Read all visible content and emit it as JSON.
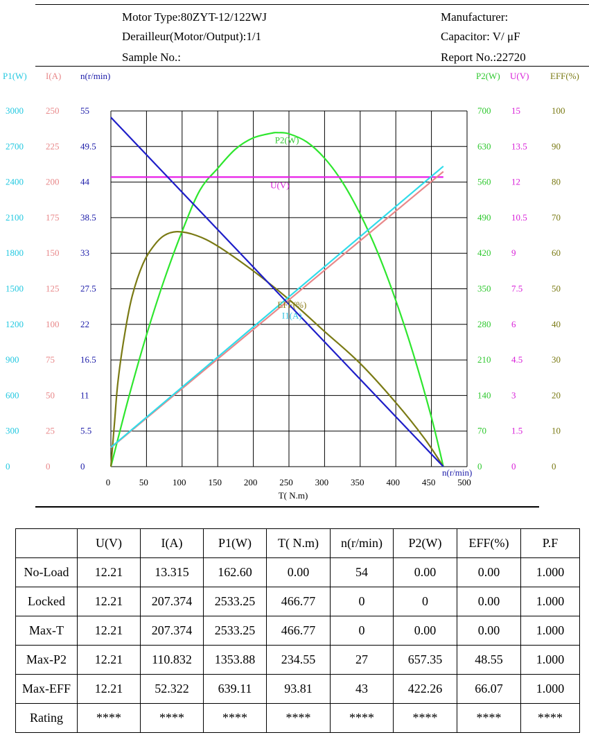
{
  "header": {
    "motor_type": "Motor Type:80ZYT-12/122WJ",
    "derailleur": "Derailleur(Motor/Output):1/1",
    "sample_no": "Sample No.:",
    "manufacturer": "Manufacturer:",
    "capacitor": "Capacitor:   V/ μF",
    "report_no": "Report No.:22720"
  },
  "chart_data": {
    "type": "line",
    "xlabel": "T( N.m)",
    "x_ticks": [
      "0",
      "50",
      "100",
      "150",
      "200",
      "250",
      "300",
      "350",
      "400",
      "450",
      "500"
    ],
    "xlim": [
      0,
      500
    ],
    "x_end_label": "n(r/min)",
    "grid": true,
    "left_axes": [
      {
        "name": "P1(W)",
        "color": "#22c8e0",
        "ticks": [
          "3000",
          "2700",
          "2400",
          "2100",
          "1800",
          "1500",
          "1200",
          "900",
          "600",
          "300",
          "0"
        ]
      },
      {
        "name": "I(A)",
        "color": "#e8888a",
        "ticks": [
          "250",
          "225",
          "200",
          "175",
          "150",
          "125",
          "100",
          "75",
          "50",
          "25",
          "0"
        ]
      },
      {
        "name": "n(r/min)",
        "color": "#1a1aa8",
        "ticks": [
          "55",
          "49.5",
          "44",
          "38.5",
          "33",
          "27.5",
          "22",
          "16.5",
          "11",
          "5.5",
          "0"
        ]
      }
    ],
    "right_axes": [
      {
        "name": "P2(W)",
        "color": "#2ec82e",
        "ticks": [
          "700",
          "630",
          "560",
          "490",
          "420",
          "350",
          "280",
          "210",
          "140",
          "70",
          "0"
        ]
      },
      {
        "name": "U(V)",
        "color": "#d81ed8",
        "ticks": [
          "15",
          "13.5",
          "12",
          "10.5",
          "9",
          "7.5",
          "6",
          "4.5",
          "3",
          "1.5",
          "0"
        ]
      },
      {
        "name": "EFF(%)",
        "color": "#7a7a14",
        "ticks": [
          "100",
          "90",
          "80",
          "70",
          "60",
          "50",
          "40",
          "30",
          "20",
          "10",
          "0"
        ]
      }
    ],
    "series": [
      {
        "name": "P2(W)",
        "key": "p2",
        "color": "#2ee62e",
        "axis_max": 700,
        "x": [
          0,
          25,
          50,
          75,
          100,
          125,
          150,
          175,
          200,
          225,
          234.55,
          250,
          275,
          300,
          325,
          350,
          375,
          400,
          425,
          450,
          466.77
        ],
        "values": [
          0,
          136,
          259,
          368,
          463,
          544,
          587,
          625,
          647,
          656,
          657.35,
          655,
          639,
          607,
          560,
          497,
          420,
          327,
          220,
          97,
          0
        ]
      },
      {
        "name": "U(V)",
        "key": "u",
        "color": "#e81ee8",
        "axis_max": 15,
        "x": [
          0,
          466.77
        ],
        "values": [
          12.21,
          12.21
        ]
      },
      {
        "name": "EFF(%)",
        "key": "eff",
        "color": "#7a7a14",
        "axis_max": 100,
        "x": [
          0,
          5,
          10,
          20,
          30,
          45,
          60,
          75,
          93.81,
          120,
          150,
          200,
          250,
          300,
          350,
          400,
          440,
          466.77
        ],
        "values": [
          0,
          12,
          24,
          38,
          48,
          57,
          62,
          65,
          66.07,
          65,
          62,
          55,
          47,
          38,
          29,
          18,
          8,
          0
        ]
      },
      {
        "name": "I(A)",
        "key": "i",
        "color": "#e8888a",
        "axis_max": 250,
        "x": [
          0,
          466.77
        ],
        "values": [
          13.315,
          207.374
        ]
      },
      {
        "name": "P1(W)",
        "key": "p1",
        "color": "#30dcea",
        "axis_max": 3000,
        "x": [
          0,
          466.77
        ],
        "values": [
          162.6,
          2533.25
        ]
      },
      {
        "name": "n(r/min)",
        "key": "n",
        "color": "#1e1ec8",
        "axis_max": 55,
        "x": [
          0,
          466.77
        ],
        "values": [
          54,
          0
        ]
      }
    ],
    "annotations": [
      {
        "text": "P2(W)",
        "color": "#2ec82e",
        "x": 255,
        "y_frac": 0.917
      },
      {
        "text": "U(V)",
        "color": "#d81ed8",
        "x": 245,
        "y_frac": 0.79
      },
      {
        "text": "EFF(%)",
        "color": "#8a7a14",
        "x": 262,
        "y_frac": 0.454
      },
      {
        "text": "I1(A)",
        "color": "#30c0e0",
        "x": 262,
        "y_frac": 0.424
      }
    ]
  },
  "table": {
    "headers": [
      "",
      "U(V)",
      "I(A)",
      "P1(W)",
      "T( N.m)",
      "n(r/min)",
      "P2(W)",
      "EFF(%)",
      "P.F"
    ],
    "rows": [
      {
        "label": "No-Load",
        "cells": [
          "12.21",
          "13.315",
          "162.60",
          "0.00",
          "54",
          "0.00",
          "0.00",
          "1.000"
        ]
      },
      {
        "label": "Locked",
        "cells": [
          "12.21",
          "207.374",
          "2533.25",
          "466.77",
          "0",
          "0",
          "0.00",
          "1.000"
        ]
      },
      {
        "label": "Max-T",
        "cells": [
          "12.21",
          "207.374",
          "2533.25",
          "466.77",
          "0",
          "0.00",
          "0.00",
          "1.000"
        ]
      },
      {
        "label": "Max-P2",
        "cells": [
          "12.21",
          "110.832",
          "1353.88",
          "234.55",
          "27",
          "657.35",
          "48.55",
          "1.000"
        ]
      },
      {
        "label": "Max-EFF",
        "cells": [
          "12.21",
          "52.322",
          "639.11",
          "93.81",
          "43",
          "422.26",
          "66.07",
          "1.000"
        ]
      },
      {
        "label": "Rating",
        "cells": [
          "****",
          "****",
          "****",
          "****",
          "****",
          "****",
          "****",
          "****"
        ]
      }
    ]
  }
}
